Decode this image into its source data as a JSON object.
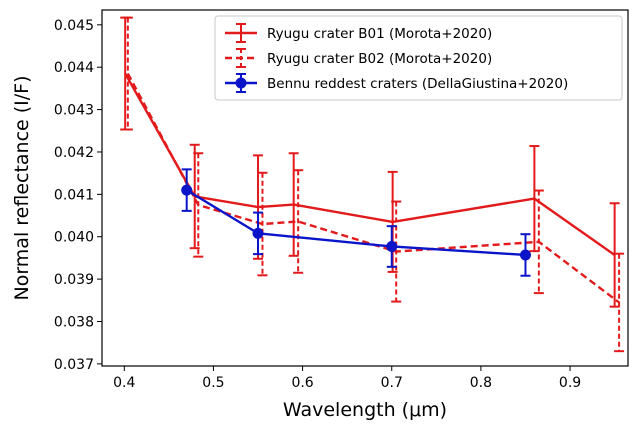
{
  "chart_data": {
    "type": "line",
    "xlabel": "Wavelength (μm)",
    "ylabel": "Normal reflectance (I/F)",
    "xlim": [
      0.375,
      0.965
    ],
    "ylim": [
      0.03695,
      0.04535
    ],
    "x_ticks": [
      0.4,
      0.5,
      0.6,
      0.7,
      0.8,
      0.9
    ],
    "x_tick_labels": [
      "0.4",
      "0.5",
      "0.6",
      "0.7",
      "0.8",
      "0.9"
    ],
    "y_ticks": [
      0.037,
      0.038,
      0.039,
      0.04,
      0.041,
      0.042,
      0.043,
      0.044,
      0.045
    ],
    "y_tick_labels": [
      "0.037",
      "0.038",
      "0.039",
      "0.040",
      "0.041",
      "0.042",
      "0.043",
      "0.044",
      "0.045"
    ],
    "grid": false,
    "legend_position": "top-right",
    "series": [
      {
        "name": "Ryugu crater B01 (Morota+2020)",
        "color": "#e31a1c",
        "line_style": "solid",
        "marker": "none",
        "x": [
          0.401,
          0.479,
          0.55,
          0.59,
          0.701,
          0.86,
          0.95
        ],
        "y": [
          0.04385,
          0.04095,
          0.0407,
          0.04076,
          0.04035,
          0.0409,
          0.03957
        ],
        "yerr": [
          0.00132,
          0.00122,
          0.00122,
          0.00121,
          0.00118,
          0.00124,
          0.00122
        ]
      },
      {
        "name": "Ryugu crater B02 (Morota+2020)",
        "color": "#e31a1c",
        "line_style": "dashed",
        "marker": "none",
        "x": [
          0.404,
          0.483,
          0.555,
          0.595,
          0.705,
          0.865,
          0.955
        ],
        "y": [
          0.04385,
          0.04075,
          0.0403,
          0.04036,
          0.03965,
          0.03988,
          0.03845
        ],
        "yerr": [
          0.00132,
          0.00122,
          0.00121,
          0.00121,
          0.00118,
          0.00121,
          0.00115
        ]
      },
      {
        "name": "Bennu reddest craters (DellaGiustina+2020)",
        "color": "#0a14c8",
        "line_style": "solid",
        "marker": "circle",
        "x": [
          0.47,
          0.55,
          0.7,
          0.85
        ],
        "y": [
          0.0411,
          0.04008,
          0.03977,
          0.03957
        ],
        "yerr": [
          0.00049,
          0.00049,
          0.00048,
          0.00049
        ]
      }
    ]
  }
}
